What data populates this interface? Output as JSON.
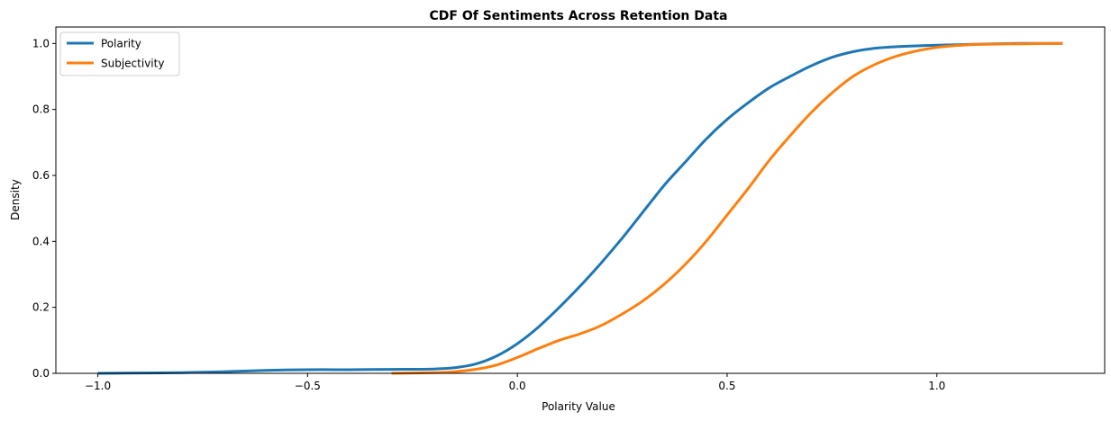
{
  "chart_data": {
    "type": "line",
    "title": "CDF Of Sentiments Across Retention Data",
    "xlabel": "Polarity Value",
    "ylabel": "Density",
    "xlim": [
      -1.1,
      1.4
    ],
    "ylim": [
      0.0,
      1.05
    ],
    "xticks": [
      -1.0,
      -0.5,
      0.0,
      0.5,
      1.0
    ],
    "xtick_labels": [
      "−1.0",
      "−0.5",
      "0.0",
      "0.5",
      "1.0"
    ],
    "yticks": [
      0.0,
      0.2,
      0.4,
      0.6,
      0.8,
      1.0
    ],
    "ytick_labels": [
      "0.0",
      "0.2",
      "0.4",
      "0.6",
      "0.8",
      "1.0"
    ],
    "grid": false,
    "legend_position": "upper-left",
    "series": [
      {
        "name": "Polarity",
        "color": "#1f77b4",
        "points": [
          [
            -1.0,
            0.0
          ],
          [
            -0.9,
            0.001
          ],
          [
            -0.8,
            0.002
          ],
          [
            -0.7,
            0.005
          ],
          [
            -0.6,
            0.009
          ],
          [
            -0.5,
            0.011
          ],
          [
            -0.4,
            0.011
          ],
          [
            -0.3,
            0.012
          ],
          [
            -0.2,
            0.013
          ],
          [
            -0.15,
            0.017
          ],
          [
            -0.1,
            0.028
          ],
          [
            -0.05,
            0.052
          ],
          [
            0.0,
            0.09
          ],
          [
            0.05,
            0.14
          ],
          [
            0.1,
            0.2
          ],
          [
            0.15,
            0.265
          ],
          [
            0.2,
            0.335
          ],
          [
            0.25,
            0.41
          ],
          [
            0.3,
            0.49
          ],
          [
            0.35,
            0.57
          ],
          [
            0.4,
            0.64
          ],
          [
            0.45,
            0.71
          ],
          [
            0.5,
            0.77
          ],
          [
            0.55,
            0.82
          ],
          [
            0.6,
            0.865
          ],
          [
            0.65,
            0.9
          ],
          [
            0.7,
            0.932
          ],
          [
            0.75,
            0.958
          ],
          [
            0.8,
            0.975
          ],
          [
            0.85,
            0.985
          ],
          [
            0.9,
            0.99
          ],
          [
            1.0,
            0.995
          ],
          [
            1.1,
            0.998
          ],
          [
            1.2,
            1.0
          ],
          [
            1.3,
            1.0
          ]
        ]
      },
      {
        "name": "Subjectivity",
        "color": "#ff7f0e",
        "points": [
          [
            -0.3,
            0.0
          ],
          [
            -0.2,
            0.002
          ],
          [
            -0.15,
            0.005
          ],
          [
            -0.1,
            0.012
          ],
          [
            -0.05,
            0.025
          ],
          [
            0.0,
            0.048
          ],
          [
            0.05,
            0.075
          ],
          [
            0.1,
            0.1
          ],
          [
            0.15,
            0.12
          ],
          [
            0.2,
            0.145
          ],
          [
            0.25,
            0.18
          ],
          [
            0.3,
            0.22
          ],
          [
            0.35,
            0.27
          ],
          [
            0.4,
            0.33
          ],
          [
            0.45,
            0.4
          ],
          [
            0.5,
            0.48
          ],
          [
            0.55,
            0.56
          ],
          [
            0.6,
            0.645
          ],
          [
            0.65,
            0.72
          ],
          [
            0.7,
            0.79
          ],
          [
            0.75,
            0.85
          ],
          [
            0.8,
            0.9
          ],
          [
            0.85,
            0.935
          ],
          [
            0.9,
            0.96
          ],
          [
            0.95,
            0.977
          ],
          [
            1.0,
            0.988
          ],
          [
            1.05,
            0.994
          ],
          [
            1.1,
            0.997
          ],
          [
            1.2,
            0.999
          ],
          [
            1.3,
            1.0
          ]
        ]
      }
    ]
  }
}
